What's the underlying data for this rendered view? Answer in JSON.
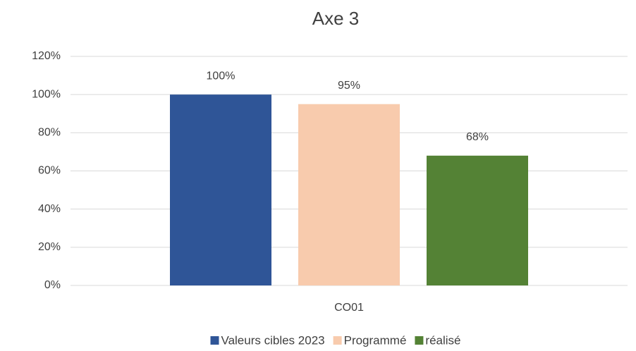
{
  "chart_data": {
    "type": "bar",
    "title": "Axe 3",
    "categories": [
      "CO01"
    ],
    "series": [
      {
        "name": "Valeurs cibles 2023",
        "color": "#2f5597",
        "values": [
          100
        ],
        "value_labels": [
          "100%"
        ]
      },
      {
        "name": "Programmé",
        "color": "#f8cbad",
        "values": [
          95
        ],
        "value_labels": [
          "95%"
        ]
      },
      {
        "name": "réalisé",
        "color": "#548235",
        "values": [
          68
        ],
        "value_labels": [
          "68%"
        ]
      }
    ],
    "ylim": [
      0,
      120
    ],
    "yticks": [
      {
        "value": 0,
        "label": "0%"
      },
      {
        "value": 20,
        "label": "20%"
      },
      {
        "value": 40,
        "label": "40%"
      },
      {
        "value": 60,
        "label": "60%"
      },
      {
        "value": 80,
        "label": "80%"
      },
      {
        "value": 100,
        "label": "100%"
      },
      {
        "value": 120,
        "label": "120%"
      }
    ],
    "grid": true,
    "legend": "bottom"
  }
}
